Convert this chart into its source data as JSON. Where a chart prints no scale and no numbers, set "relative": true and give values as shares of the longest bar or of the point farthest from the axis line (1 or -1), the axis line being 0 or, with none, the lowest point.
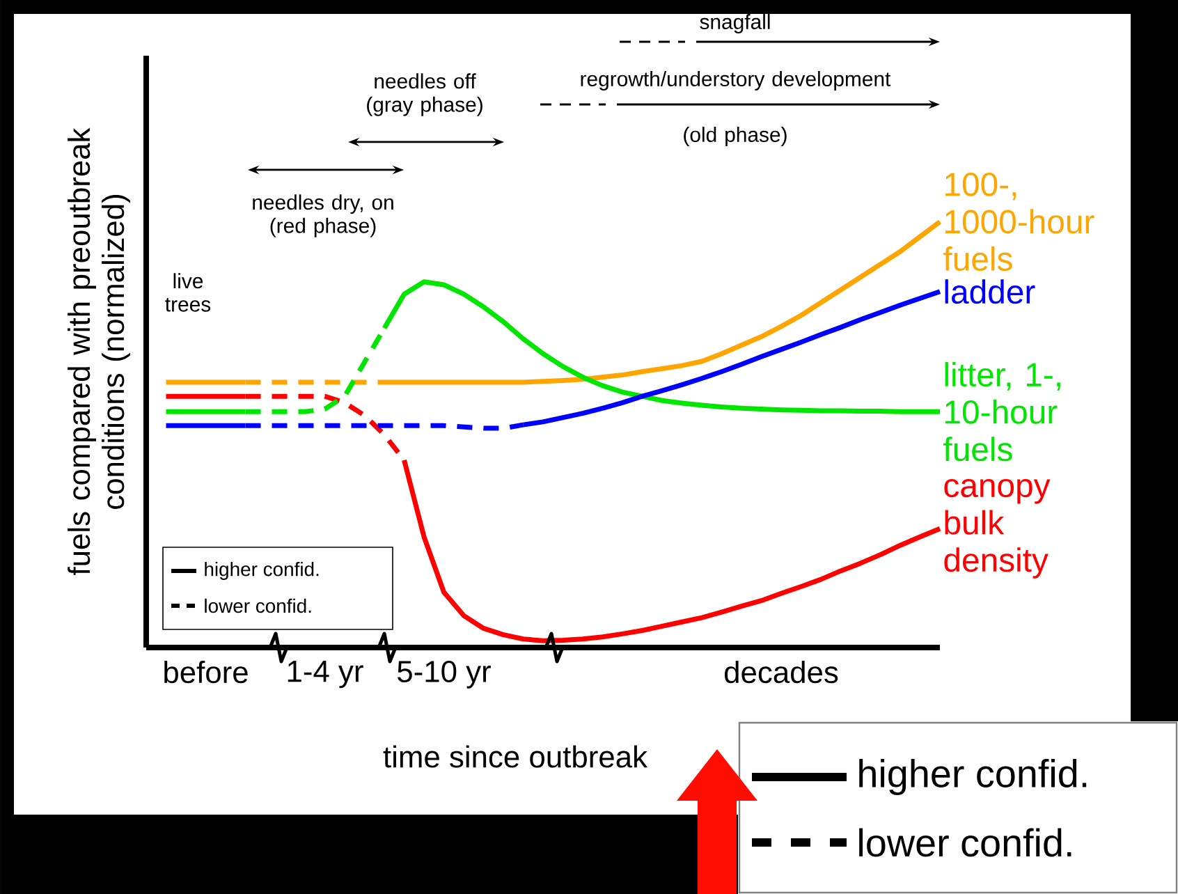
{
  "chart_data": {
    "type": "line",
    "relative": true,
    "xlabel": "time since outbreak",
    "ylabel": "fuels compared with preoutbreak conditions (normalized)",
    "categories": [
      null,
      null,
      null,
      "before",
      null,
      null,
      null,
      null,
      null,
      "1-4 yr",
      null,
      null,
      null,
      null,
      null,
      "5-10 yr",
      null,
      null,
      null,
      null,
      null,
      null,
      null,
      null,
      null,
      null,
      null,
      null,
      null,
      null,
      null,
      null,
      "decades",
      null,
      null,
      null,
      null,
      null,
      null,
      null,
      null
    ],
    "series": [
      {
        "color": "#ffa500",
        "line_style": "solid",
        "values": [
          null,
          0.623,
          0.623,
          0.623,
          0.623,
          0.623,
          null,
          null,
          null,
          null,
          null,
          null,
          null,
          null,
          null,
          null,
          null,
          null,
          null,
          null,
          null,
          null,
          null,
          null,
          null,
          null,
          null,
          null,
          null,
          null,
          null,
          null,
          null,
          null,
          null,
          null,
          null,
          null,
          null,
          null,
          null
        ]
      },
      {
        "color": "#ffa500",
        "line_style": "dashed",
        "values": [
          null,
          null,
          null,
          null,
          null,
          0.623,
          0.623,
          0.623,
          0.623,
          0.623,
          0.623,
          0.623,
          0.623,
          null,
          null,
          null,
          null,
          null,
          null,
          null,
          null,
          null,
          null,
          null,
          null,
          null,
          null,
          null,
          null,
          null,
          null,
          null,
          null,
          null,
          null,
          null,
          null,
          null,
          null,
          null,
          null
        ]
      },
      {
        "name": "100-, 1000-hour fuels",
        "color": "#ffa500",
        "line_style": "solid",
        "values": [
          null,
          null,
          null,
          null,
          null,
          null,
          null,
          null,
          null,
          null,
          null,
          null,
          0.623,
          0.623,
          0.623,
          0.623,
          0.623,
          0.623,
          0.623,
          0.623,
          0.625,
          0.627,
          0.63,
          0.635,
          0.64,
          0.648,
          0.655,
          0.662,
          0.672,
          0.69,
          0.71,
          0.73,
          0.754,
          0.78,
          0.81,
          0.84,
          0.87,
          0.9,
          0.93,
          0.965,
          1.0
        ]
      },
      {
        "color": "#ff0000",
        "line_style": "solid",
        "values": [
          null,
          0.59,
          0.59,
          0.59,
          0.59,
          0.59,
          null,
          null,
          null,
          null,
          null,
          null,
          null,
          null,
          null,
          null,
          null,
          null,
          null,
          null,
          null,
          null,
          null,
          null,
          null,
          null,
          null,
          null,
          null,
          null,
          null,
          null,
          null,
          null,
          null,
          null,
          null,
          null,
          null,
          null,
          null
        ]
      },
      {
        "color": "#ff0000",
        "line_style": "dashed",
        "values": [
          null,
          null,
          null,
          null,
          null,
          0.59,
          0.59,
          0.59,
          0.59,
          0.59,
          0.575,
          0.545,
          0.5,
          0.44,
          null,
          null,
          null,
          null,
          null,
          null,
          null,
          null,
          null,
          null,
          null,
          null,
          null,
          null,
          null,
          null,
          null,
          null,
          null,
          null,
          null,
          null,
          null,
          null,
          null,
          null,
          null
        ]
      },
      {
        "name": "canopy bulk density",
        "color": "#ff0000",
        "line_style": "solid",
        "values": [
          null,
          null,
          null,
          null,
          null,
          null,
          null,
          null,
          null,
          null,
          null,
          null,
          null,
          0.44,
          0.26,
          0.13,
          0.075,
          0.045,
          0.03,
          0.02,
          0.016,
          0.017,
          0.02,
          0.025,
          0.032,
          0.04,
          0.05,
          0.06,
          0.07,
          0.083,
          0.097,
          0.11,
          0.127,
          0.143,
          0.16,
          0.18,
          0.198,
          0.218,
          0.24,
          0.26,
          0.279
        ]
      },
      {
        "color": "#00e600",
        "line_style": "solid",
        "values": [
          null,
          0.554,
          0.554,
          0.554,
          0.554,
          0.554,
          null,
          null,
          null,
          null,
          null,
          null,
          null,
          null,
          null,
          null,
          null,
          null,
          null,
          null,
          null,
          null,
          null,
          null,
          null,
          null,
          null,
          null,
          null,
          null,
          null,
          null,
          null,
          null,
          null,
          null,
          null,
          null,
          null,
          null,
          null
        ]
      },
      {
        "color": "#00e600",
        "line_style": "dashed",
        "values": [
          null,
          null,
          null,
          null,
          null,
          0.554,
          0.554,
          0.554,
          0.554,
          0.56,
          0.59,
          0.67,
          0.75,
          null,
          null,
          null,
          null,
          null,
          null,
          null,
          null,
          null,
          null,
          null,
          null,
          null,
          null,
          null,
          null,
          null,
          null,
          null,
          null,
          null,
          null,
          null,
          null,
          null,
          null,
          null,
          null
        ]
      },
      {
        "name": "litter, 1-, 10-hour fuels",
        "color": "#00e600",
        "line_style": "solid",
        "values": [
          null,
          null,
          null,
          null,
          null,
          null,
          null,
          null,
          null,
          null,
          null,
          null,
          0.75,
          0.83,
          0.859,
          0.852,
          0.83,
          0.8,
          0.765,
          0.725,
          0.69,
          0.66,
          0.635,
          0.615,
          0.6,
          0.59,
          0.58,
          0.574,
          0.569,
          0.565,
          0.562,
          0.56,
          0.558,
          0.557,
          0.556,
          0.556,
          0.555,
          0.555,
          0.554,
          0.554,
          0.554
        ]
      },
      {
        "color": "#0000ff",
        "line_style": "solid",
        "values": [
          null,
          0.521,
          0.521,
          0.521,
          0.521,
          0.521,
          null,
          null,
          null,
          null,
          null,
          null,
          null,
          null,
          null,
          null,
          null,
          null,
          null,
          null,
          null,
          null,
          null,
          null,
          null,
          null,
          null,
          null,
          null,
          null,
          null,
          null,
          null,
          null,
          null,
          null,
          null,
          null,
          null,
          null,
          null
        ]
      },
      {
        "color": "#0000ff",
        "line_style": "dashed",
        "values": [
          null,
          null,
          null,
          null,
          null,
          0.521,
          0.521,
          0.521,
          0.521,
          0.521,
          0.521,
          0.521,
          0.521,
          0.521,
          0.521,
          0.521,
          0.518,
          0.515,
          0.515,
          0.523,
          null,
          null,
          null,
          null,
          null,
          null,
          null,
          null,
          null,
          null,
          null,
          null,
          null,
          null,
          null,
          null,
          null,
          null,
          null,
          null,
          null
        ]
      },
      {
        "name": "ladder",
        "color": "#0000ff",
        "line_style": "solid",
        "values": [
          null,
          null,
          null,
          null,
          null,
          null,
          null,
          null,
          null,
          null,
          null,
          null,
          null,
          null,
          null,
          null,
          null,
          null,
          null,
          0.523,
          0.53,
          0.54,
          0.55,
          0.562,
          0.575,
          0.59,
          0.603,
          0.617,
          0.632,
          0.648,
          0.665,
          0.683,
          0.7,
          0.717,
          0.735,
          0.752,
          0.77,
          0.787,
          0.804,
          0.82,
          0.836
        ]
      }
    ],
    "annotations": [
      "live trees",
      "needles dry, on (red phase)",
      "needles off (gray phase)",
      "regrowth/understory development",
      "(old phase)",
      "snagfall",
      "higher confid.",
      "lower confid.",
      "higher confid.",
      "lower confid."
    ]
  }
}
